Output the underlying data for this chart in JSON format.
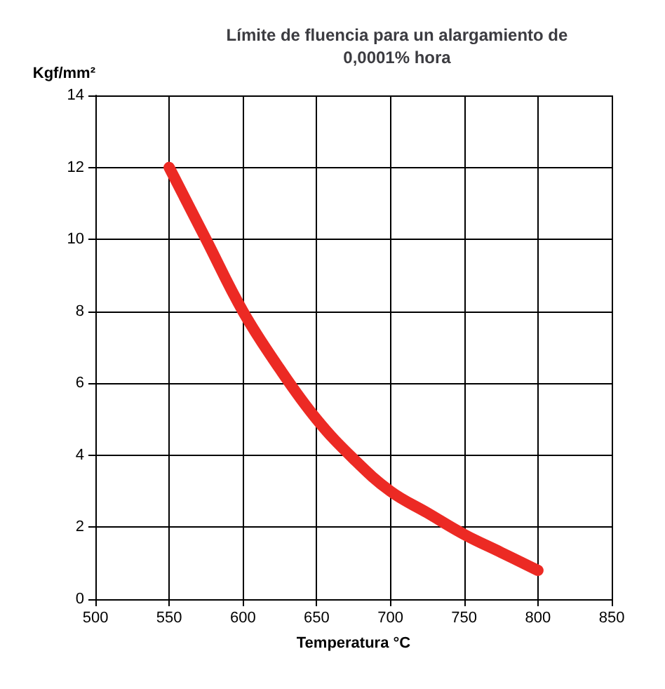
{
  "chart_data": {
    "type": "line",
    "title": "Límite de fluencia para un alargamiento de\n0,0001% hora",
    "xlabel": "Temperatura °C",
    "ylabel": "Kgf/mm²",
    "x": [
      550,
      575,
      600,
      625,
      650,
      675,
      700,
      725,
      750,
      775,
      800
    ],
    "series": [
      {
        "color": "#ec2a24",
        "values": [
          12,
          10,
          8,
          6.4,
          5,
          3.9,
          3.0,
          2.4,
          1.8,
          1.3,
          0.8
        ]
      }
    ],
    "xlim": [
      500,
      850
    ],
    "xticks": [
      500,
      550,
      600,
      650,
      700,
      750,
      800,
      850
    ],
    "ylim": [
      0,
      14
    ],
    "yticks": [
      0,
      2,
      4,
      6,
      8,
      10,
      12,
      14
    ],
    "grid": true,
    "line_style": "solid"
  }
}
